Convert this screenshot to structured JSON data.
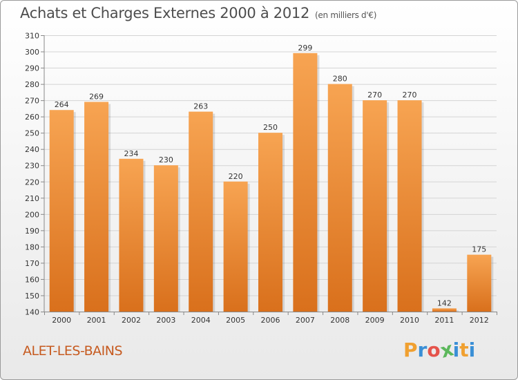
{
  "header": {
    "title": "Achats et Charges Externes 2000 à 2012",
    "unit": "(en milliers d'€)"
  },
  "footer": {
    "place": "ALET-LES-BAINS"
  },
  "logo": {
    "letters": [
      "P",
      "r",
      "o",
      "x",
      "i",
      "t",
      "i"
    ],
    "colors": [
      "#f0a030",
      "#3a8fd6",
      "#e5534b",
      "#5cb85c",
      "#3a8fd6",
      "#f0a030",
      "#3a8fd6"
    ]
  },
  "colors": {
    "bar_top": "#f7a452",
    "bar_bottom": "#d9701c",
    "grid": "#d4d4d4"
  },
  "chart_data": {
    "type": "bar",
    "title": "Achats et Charges Externes 2000 à 2012",
    "ylabel": "(en milliers d'€)",
    "categories": [
      "2000",
      "2001",
      "2002",
      "2003",
      "2004",
      "2005",
      "2006",
      "2007",
      "2008",
      "2009",
      "2010",
      "2011",
      "2012"
    ],
    "values": [
      264,
      269,
      234,
      230,
      263,
      220,
      250,
      299,
      280,
      270,
      270,
      142,
      175
    ],
    "data_labels": [
      "264",
      "269",
      "234",
      "230",
      "263",
      "220",
      "250",
      "299",
      "280",
      "270",
      "270",
      "142",
      "175"
    ],
    "ylim": [
      140,
      310
    ],
    "yticks": [
      140,
      150,
      160,
      170,
      180,
      190,
      200,
      210,
      220,
      230,
      240,
      250,
      260,
      270,
      280,
      290,
      300,
      310
    ],
    "grid": true,
    "legend": "none"
  }
}
